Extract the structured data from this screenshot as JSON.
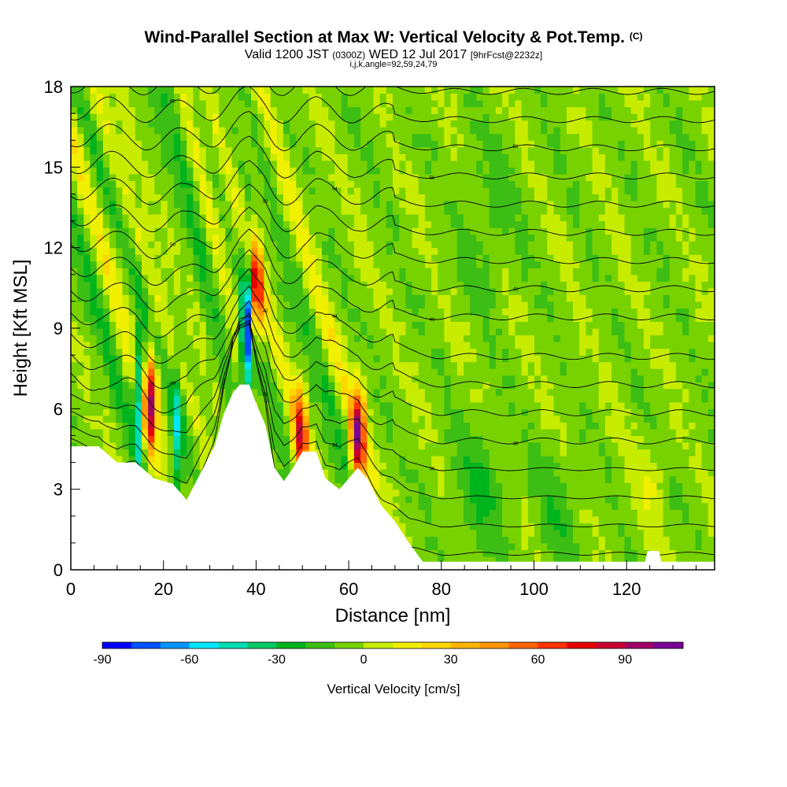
{
  "title": {
    "main": "Wind-Parallel Section at Max W: Vertical Velocity & Pot.Temp.",
    "copyright": "(C)",
    "valid_prefix": "Valid 1200 JST",
    "utc": "(0300Z)",
    "valid_suffix": "WED 12 Jul 2017",
    "forecast": "[9hrFcst@2232z]",
    "indices": "i,j,k,angle=92,59,24,79"
  },
  "chart_data": {
    "type": "heatmap",
    "xlabel": "Distance [nm]",
    "ylabel": "Height [Kft MSL]",
    "xlim": [
      0,
      139
    ],
    "ylim": [
      0,
      18
    ],
    "x_ticks": [
      "0",
      "20",
      "40",
      "60",
      "80",
      "100",
      "120"
    ],
    "x_tick_values": [
      0,
      20,
      40,
      60,
      80,
      100,
      120
    ],
    "y_ticks": [
      "0",
      "3",
      "6",
      "9",
      "12",
      "15",
      "18"
    ],
    "y_tick_values": [
      0,
      3,
      6,
      9,
      12,
      15,
      18
    ],
    "colorbar": {
      "label": "Vertical Velocity [cm/s]",
      "tick_labels": [
        "-90",
        "-60",
        "-30",
        "0",
        "30",
        "60",
        "90"
      ],
      "tick_values": [
        -90,
        -60,
        -30,
        0,
        30,
        60,
        90
      ],
      "range": [
        -90,
        110
      ],
      "step": 10,
      "colors": [
        "#0000ff",
        "#0050ff",
        "#0096ff",
        "#00e6ff",
        "#00dcb4",
        "#00c864",
        "#00b41e",
        "#3cbe14",
        "#78d200",
        "#c8ec00",
        "#f0f000",
        "#ffd700",
        "#ffb400",
        "#ff9600",
        "#ff6400",
        "#ff3200",
        "#e60000",
        "#c80032",
        "#a00064",
        "#780096"
      ]
    },
    "terrain_profile": [
      [
        0,
        4.6
      ],
      [
        6,
        4.6
      ],
      [
        10,
        4.0
      ],
      [
        14,
        4.0
      ],
      [
        18,
        3.4
      ],
      [
        22,
        3.2
      ],
      [
        25,
        2.6
      ],
      [
        28,
        3.6
      ],
      [
        31,
        4.6
      ],
      [
        33,
        5.8
      ],
      [
        35,
        6.6
      ],
      [
        36.5,
        6.9
      ],
      [
        38.5,
        6.9
      ],
      [
        40,
        6.2
      ],
      [
        42,
        5.4
      ],
      [
        44,
        3.8
      ],
      [
        46,
        3.3
      ],
      [
        48,
        3.8
      ],
      [
        50,
        4.4
      ],
      [
        53,
        4.4
      ],
      [
        55,
        3.4
      ],
      [
        58,
        3.0
      ],
      [
        60,
        3.4
      ],
      [
        62,
        3.8
      ],
      [
        64,
        3.4
      ],
      [
        67,
        2.4
      ],
      [
        70,
        1.8
      ],
      [
        73,
        1.0
      ],
      [
        76,
        0.3
      ],
      [
        124,
        0.3
      ],
      [
        124.5,
        0.7
      ],
      [
        127,
        0.7
      ],
      [
        127.5,
        0.3
      ],
      [
        139,
        0.3
      ]
    ],
    "updraft_cores": [
      {
        "x": 17,
        "y": 6.2,
        "w_max": 100
      },
      {
        "x": 40,
        "y": 10.5,
        "w_max": 80
      },
      {
        "x": 49.5,
        "y": 5.0,
        "w_max": 70
      },
      {
        "x": 62,
        "y": 5.0,
        "w_max": 90
      }
    ],
    "downdraft_cores": [
      {
        "x": 38,
        "y": 9.0,
        "w_min": -80
      },
      {
        "x": 23,
        "y": 5.0,
        "w_min": -40
      },
      {
        "x": 15,
        "y": 6.5,
        "w_min": -60
      }
    ],
    "isentrope_labels": [
      "30",
      "32",
      "34",
      "36",
      "38",
      "40",
      "42",
      "44",
      "46",
      "48",
      "50",
      "52",
      "54",
      "56",
      "58",
      "60",
      "62"
    ],
    "isentrope_values": [
      30,
      32,
      34,
      36,
      38,
      40,
      42,
      44,
      46,
      48,
      50,
      52,
      54,
      56,
      58,
      60,
      62
    ]
  }
}
